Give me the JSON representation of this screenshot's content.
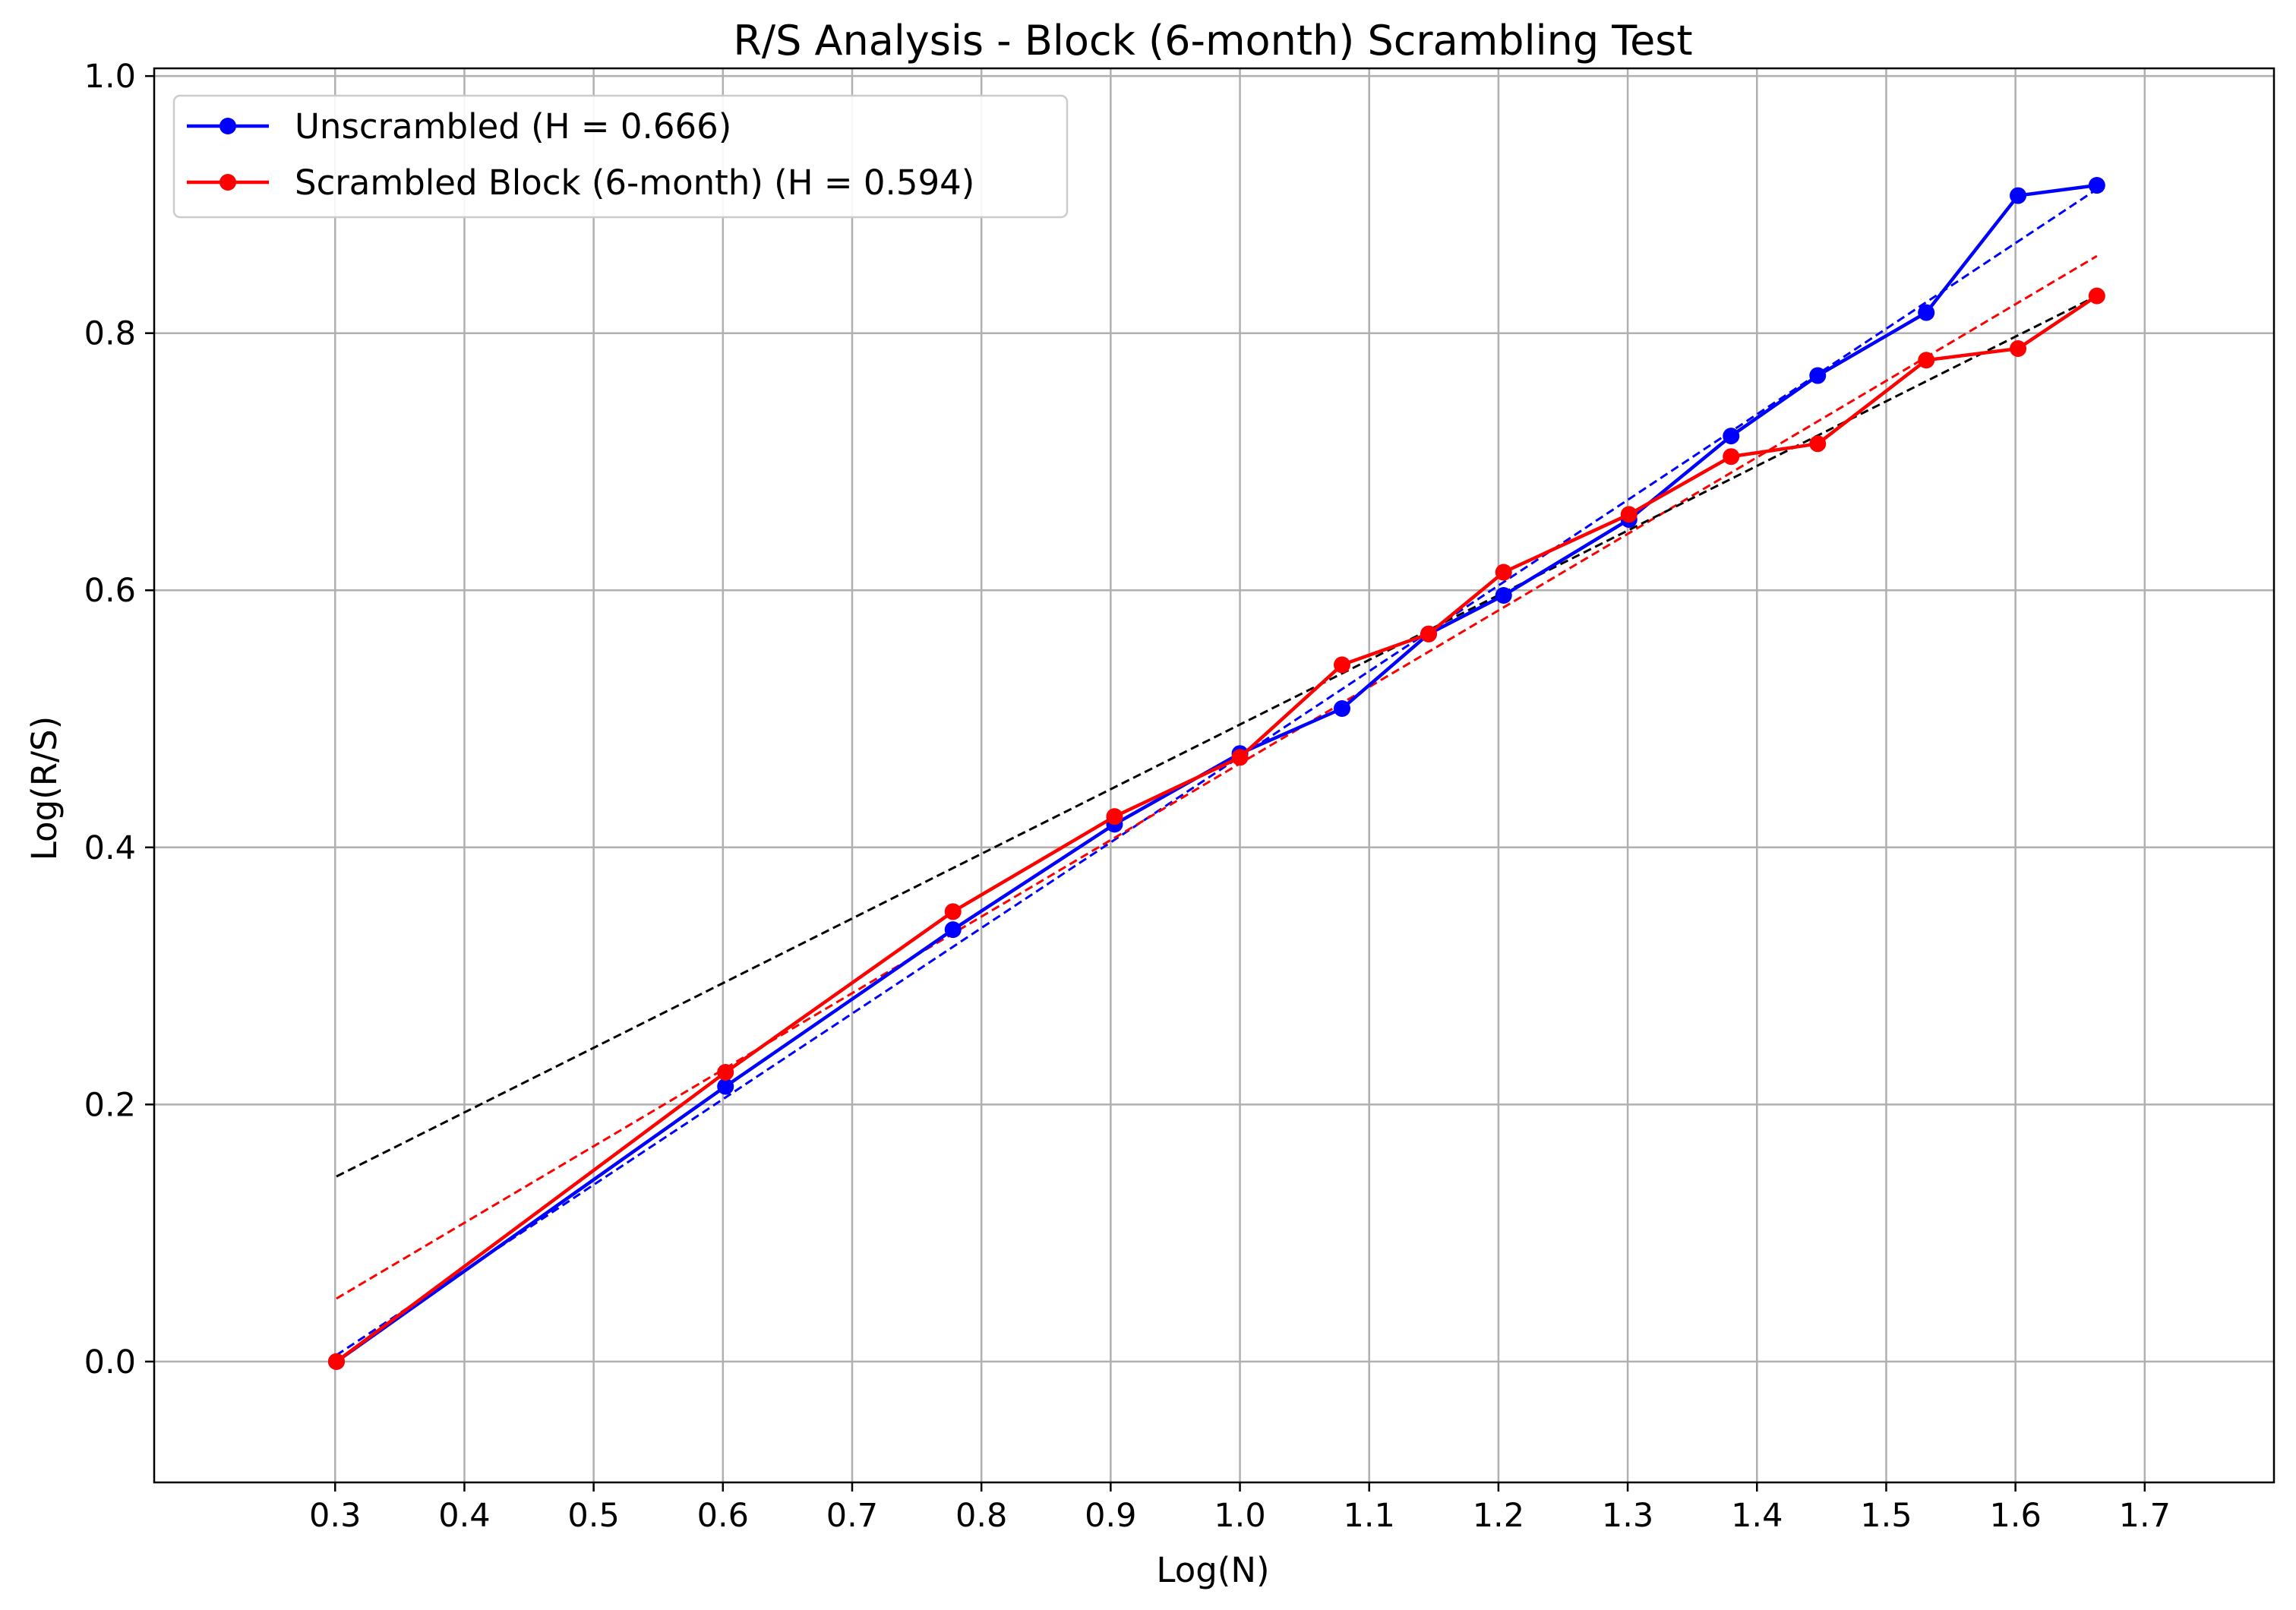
{
  "chart_data": {
    "type": "line",
    "title": "R/S Analysis - Block (6-month) Scrambling Test",
    "xlabel": "Log(N)",
    "ylabel": "Log(R/S)",
    "xlim": [
      0.16,
      1.8
    ],
    "ylim": [
      -0.094,
      1.006
    ],
    "x_ticks": [
      0.3,
      0.4,
      0.5,
      0.6,
      0.7,
      0.8,
      0.9,
      1.0,
      1.1,
      1.2,
      1.3,
      1.4,
      1.5,
      1.6,
      1.7
    ],
    "x_tick_labels": [
      "0.3",
      "0.4",
      "0.5",
      "0.6",
      "0.7",
      "0.8",
      "0.9",
      "1.0",
      "1.1",
      "1.2",
      "1.3",
      "1.4",
      "1.5",
      "1.6",
      "1.7"
    ],
    "y_ticks": [
      0.0,
      0.2,
      0.4,
      0.6,
      0.8,
      1.0
    ],
    "y_tick_labels": [
      "0.0",
      "0.2",
      "0.4",
      "0.6",
      "0.8",
      "1.0"
    ],
    "grid": true,
    "legend_position": "top-left",
    "x": [
      0.301,
      0.602,
      0.778,
      0.903,
      1.0,
      1.079,
      1.146,
      1.204,
      1.301,
      1.38,
      1.447,
      1.531,
      1.602,
      1.663
    ],
    "series": [
      {
        "name": "Unscrambled (H = 0.666)",
        "color": "#0000ff",
        "values": [
          0.0,
          0.214,
          0.336,
          0.418,
          0.473,
          0.508,
          0.566,
          0.596,
          0.655,
          0.72,
          0.767,
          0.816,
          0.907,
          0.915
        ]
      },
      {
        "name": "Scrambled Block (6-month) (H = 0.594)",
        "color": "#ff0000",
        "values": [
          0.0,
          0.225,
          0.35,
          0.424,
          0.47,
          0.542,
          0.566,
          0.614,
          0.659,
          0.704,
          0.714,
          0.779,
          0.788,
          0.829
        ]
      }
    ],
    "fit_lines": [
      {
        "color": "#0000ff",
        "x": [
          0.301,
          1.663
        ],
        "y": [
          0.005,
          0.912
        ]
      },
      {
        "color": "#ff0000",
        "x": [
          0.301,
          1.663
        ],
        "y": [
          0.049,
          0.86
        ]
      },
      {
        "color": "#000000",
        "x": [
          0.301,
          1.663
        ],
        "y": [
          0.144,
          0.829
        ]
      }
    ]
  }
}
